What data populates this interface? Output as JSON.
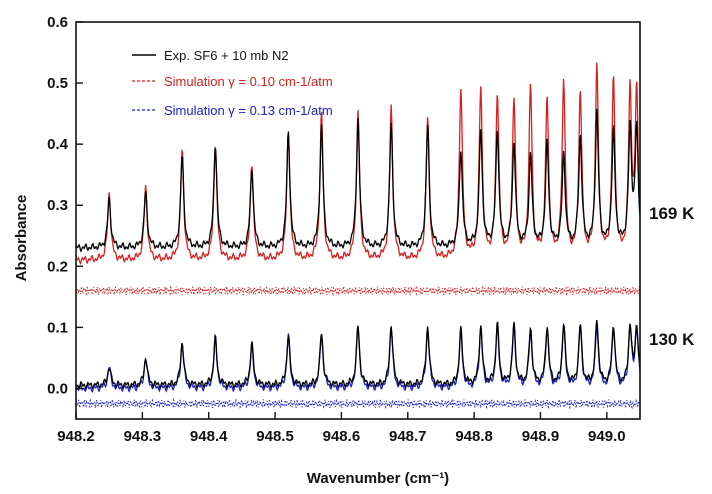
{
  "chart_data": {
    "type": "line",
    "title": "",
    "xlabel": "Wavenumber (cm⁻¹)",
    "ylabel": "Absorbance",
    "xlim": [
      948.2,
      949.05
    ],
    "ylim": [
      -0.05,
      0.6
    ],
    "x_ticks": [
      "948.2",
      "948.3",
      "948.4",
      "948.5",
      "948.6",
      "948.7",
      "948.8",
      "948.9",
      "949.0"
    ],
    "y_ticks": [
      "0.0",
      "0.1",
      "0.2",
      "0.3",
      "0.4",
      "0.5",
      "0.6"
    ],
    "grid": false,
    "legend_position": "top-left",
    "colors": {
      "experiment": "#000000",
      "sim_010": "#d62020",
      "sim_013": "#1c22c8"
    },
    "legend": [
      {
        "label": "Exp. SF6 + 10 mb N2",
        "color": "#000000",
        "style": "solid"
      },
      {
        "label": "Simulation γ = 0.10 cm-1/atm",
        "color": "#d62020",
        "style": "dashed"
      },
      {
        "label": "Simulation  γ = 0.13 cm-1/atm",
        "color": "#1c22c8",
        "style": "dashed"
      }
    ],
    "annotations": [
      "169 K",
      "130 K"
    ],
    "x_peaks": [
      948.25,
      948.305,
      948.36,
      948.41,
      948.465,
      948.52,
      948.57,
      948.625,
      948.675,
      948.73,
      948.78,
      948.81,
      948.835,
      948.86,
      948.885,
      948.91,
      948.935,
      948.96,
      948.985,
      949.01,
      949.035,
      949.045
    ],
    "series": [
      {
        "name": "Exp. SF6 + 10 mb N2 (169 K)",
        "color": "#000000",
        "baseline": 0.23,
        "peak_heights": [
          0.31,
          0.32,
          0.38,
          0.4,
          0.36,
          0.42,
          0.43,
          0.44,
          0.43,
          0.43,
          0.39,
          0.42,
          0.42,
          0.4,
          0.38,
          0.4,
          0.38,
          0.41,
          0.45,
          0.42,
          0.42,
          0.42
        ]
      },
      {
        "name": "Simulation γ = 0.10 cm-1/atm (169 K)",
        "color": "#d62020",
        "baseline": 0.21,
        "peak_heights": [
          0.32,
          0.33,
          0.39,
          0.4,
          0.37,
          0.42,
          0.45,
          0.45,
          0.46,
          0.44,
          0.49,
          0.49,
          0.48,
          0.47,
          0.49,
          0.47,
          0.5,
          0.48,
          0.52,
          0.5,
          0.48,
          0.48
        ]
      },
      {
        "name": "Residual (169 K)",
        "color": "#d62020",
        "style": "dotted",
        "level": 0.16
      },
      {
        "name": "Exp. SF6 + 10 mb N2 (130 K)",
        "color": "#000000",
        "baseline": 0.005,
        "peak_heights": [
          0.035,
          0.05,
          0.075,
          0.082,
          0.073,
          0.087,
          0.091,
          0.102,
          0.104,
          0.101,
          0.095,
          0.1,
          0.104,
          0.102,
          0.097,
          0.1,
          0.104,
          0.102,
          0.11,
          0.102,
          0.1,
          0.1
        ]
      },
      {
        "name": "Simulation γ = 0.13 cm-1/atm (130 K)",
        "color": "#1c22c8",
        "baseline": 0.0,
        "peak_heights": [
          0.035,
          0.05,
          0.075,
          0.082,
          0.07,
          0.085,
          0.09,
          0.1,
          0.1,
          0.099,
          0.092,
          0.097,
          0.1,
          0.1,
          0.095,
          0.097,
          0.1,
          0.1,
          0.1,
          0.1,
          0.097,
          0.097
        ]
      },
      {
        "name": "Residual (130 K)",
        "color": "#1c22c8",
        "style": "dotted",
        "level": -0.025
      }
    ]
  }
}
